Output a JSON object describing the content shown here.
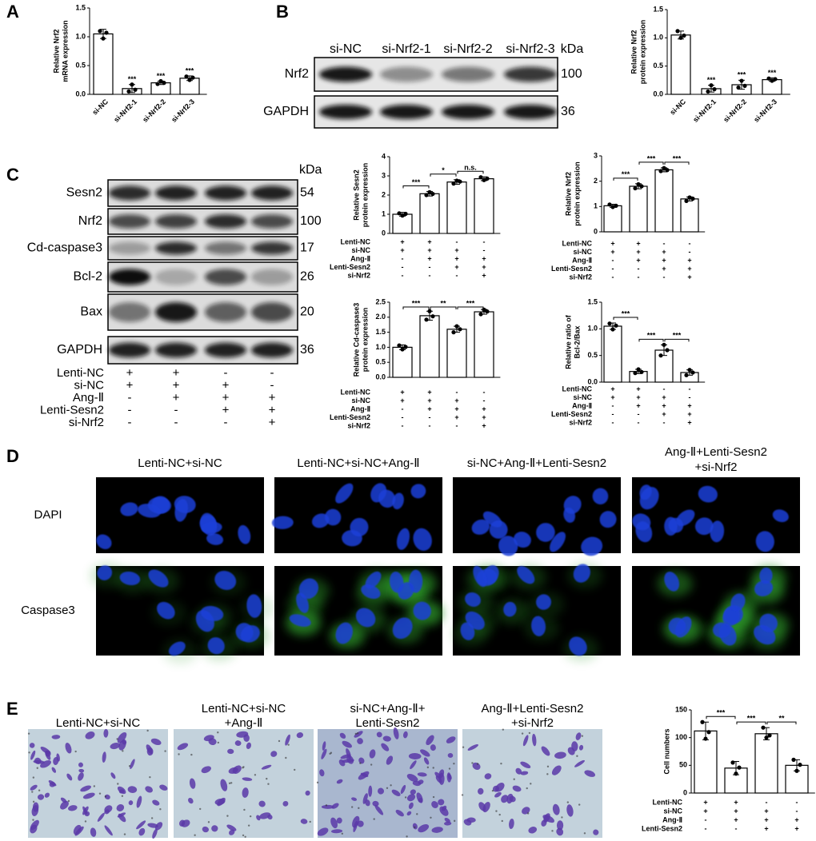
{
  "panel_labels": [
    "A",
    "B",
    "C",
    "D",
    "E"
  ],
  "chart_data": [
    {
      "type": "bar",
      "ylabel": [
        "Relative Nrf2",
        "mRNA expression"
      ],
      "categories": [
        "si-NC",
        "si-Nrf2-1",
        "si-Nrf2-2",
        "si-Nrf2-3"
      ],
      "values": [
        1.05,
        0.1,
        0.2,
        0.28
      ],
      "errors": [
        0.08,
        0.07,
        0.03,
        0.04
      ],
      "points": [
        [
          1.1,
          0.97,
          1.07
        ],
        [
          0.05,
          0.17,
          0.08
        ],
        [
          0.18,
          0.23,
          0.2
        ],
        [
          0.31,
          0.25,
          0.29
        ]
      ],
      "stars": [
        null,
        "***",
        "***",
        "***"
      ],
      "ylim": [
        0,
        1.5
      ],
      "yticks": [
        {
          "value": 0,
          "label": "0.0"
        },
        0.5,
        {
          "value": 1,
          "label": "1.0"
        },
        1.5
      ]
    },
    {
      "type": "bar",
      "ylabel": [
        "Relative Nrf2",
        "protein expression"
      ],
      "categories": [
        "si-NC",
        "si-Nrf2-1",
        "si-Nrf2-2",
        "si-Nrf2-3"
      ],
      "values": [
        1.05,
        0.1,
        0.17,
        0.26
      ],
      "errors": [
        0.07,
        0.06,
        0.08,
        0.03
      ],
      "points": [
        [
          1.12,
          1.0,
          1.04
        ],
        [
          0.05,
          0.16,
          0.09
        ],
        [
          0.12,
          0.24,
          0.15
        ],
        [
          0.28,
          0.24,
          0.27
        ]
      ],
      "stars": [
        null,
        "***",
        "***",
        "***"
      ],
      "ylim": [
        0,
        1.5
      ],
      "yticks": [
        {
          "value": 0,
          "label": "0.0"
        },
        0.5,
        {
          "value": 1,
          "label": "1.0"
        },
        1.5
      ]
    },
    {
      "type": "bar",
      "ylabel": [
        "Relative Sesn2",
        "protein expression"
      ],
      "values": [
        1.0,
        2.07,
        2.68,
        2.85
      ],
      "errors": [
        0.1,
        0.12,
        0.12,
        0.1
      ],
      "points": [
        [
          1.05,
          0.93,
          1.02
        ],
        [
          2.0,
          2.15,
          2.06
        ],
        [
          2.6,
          2.75,
          2.7
        ],
        [
          2.93,
          2.78,
          2.86
        ]
      ],
      "significance": [
        "***",
        "*",
        "n.s."
      ],
      "ylim": [
        0,
        4
      ],
      "yticks": [
        0,
        1,
        2,
        3,
        4
      ],
      "conditions": [
        {
          "name": "Lenti-NC",
          "signs": [
            "+",
            "+",
            "-",
            "-"
          ]
        },
        {
          "name": "si-NC",
          "signs": [
            "+",
            "+",
            "+",
            "-"
          ]
        },
        {
          "name": "Ang-Ⅱ",
          "signs": [
            "-",
            "+",
            "+",
            "+"
          ]
        },
        {
          "name": "Lenti-Sesn2",
          "signs": [
            "-",
            "-",
            "+",
            "+"
          ]
        },
        {
          "name": "si-Nrf2",
          "signs": [
            "-",
            "-",
            "-",
            "+"
          ]
        }
      ]
    },
    {
      "type": "bar",
      "ylabel": [
        "Relative Nrf2",
        "protein expression"
      ],
      "values": [
        1.03,
        1.8,
        2.45,
        1.3
      ],
      "errors": [
        0.06,
        0.1,
        0.08,
        0.08
      ],
      "points": [
        [
          1.08,
          0.98,
          1.03
        ],
        [
          1.72,
          1.88,
          1.8
        ],
        [
          2.4,
          2.52,
          2.44
        ],
        [
          1.22,
          1.36,
          1.31
        ]
      ],
      "significance": [
        "***",
        "***",
        "***"
      ],
      "ylim": [
        0,
        3
      ],
      "yticks": [
        0,
        1,
        2,
        3
      ],
      "conditions": [
        {
          "name": "Lenti-NC",
          "signs": [
            "+",
            "+",
            "-",
            "-"
          ]
        },
        {
          "name": "si-NC",
          "signs": [
            "+",
            "+",
            "+",
            "-"
          ]
        },
        {
          "name": "Ang-Ⅱ",
          "signs": [
            "-",
            "+",
            "+",
            "+"
          ]
        },
        {
          "name": "Lenti-Sesn2",
          "signs": [
            "-",
            "-",
            "+",
            "+"
          ]
        },
        {
          "name": "si-Nrf2",
          "signs": [
            "-",
            "-",
            "-",
            "+"
          ]
        }
      ]
    },
    {
      "type": "bar",
      "ylabel": [
        "Relative Cd-caspase3",
        "protein expression"
      ],
      "values": [
        1.0,
        2.05,
        1.6,
        2.18
      ],
      "errors": [
        0.08,
        0.15,
        0.1,
        0.08
      ],
      "points": [
        [
          1.06,
          0.93,
          1.01
        ],
        [
          1.92,
          2.2,
          2.03
        ],
        [
          1.5,
          1.7,
          1.6
        ],
        [
          2.1,
          2.25,
          2.19
        ]
      ],
      "significance": [
        "***",
        "**",
        "***"
      ],
      "ylim": [
        0,
        2.5
      ],
      "yticks": [
        {
          "value": 0,
          "label": "0.0"
        },
        0.5,
        {
          "value": 1,
          "label": "1.0"
        },
        1.5,
        {
          "value": 2,
          "label": "2.0"
        },
        2.5
      ],
      "conditions": [
        {
          "name": "Lenti-NC",
          "signs": [
            "+",
            "+",
            "-",
            "-"
          ]
        },
        {
          "name": "si-NC",
          "signs": [
            "+",
            "+",
            "+",
            "-"
          ]
        },
        {
          "name": "Ang-Ⅱ",
          "signs": [
            "-",
            "+",
            "+",
            "+"
          ]
        },
        {
          "name": "Lenti-Sesn2",
          "signs": [
            "-",
            "-",
            "+",
            "+"
          ]
        },
        {
          "name": "si-Nrf2",
          "signs": [
            "-",
            "-",
            "-",
            "+"
          ]
        }
      ]
    },
    {
      "type": "bar",
      "ylabel": [
        "Relative ratio of",
        "Bcl-2/Bax"
      ],
      "values": [
        1.05,
        0.2,
        0.6,
        0.18
      ],
      "errors": [
        0.06,
        0.04,
        0.1,
        0.05
      ],
      "points": [
        [
          1.1,
          0.99,
          1.06
        ],
        [
          0.17,
          0.24,
          0.19
        ],
        [
          0.5,
          0.7,
          0.6
        ],
        [
          0.13,
          0.23,
          0.18
        ]
      ],
      "significance": [
        "***",
        "***",
        "***"
      ],
      "ylim": [
        0,
        1.5
      ],
      "yticks": [
        {
          "value": 0,
          "label": "0.0"
        },
        0.5,
        {
          "value": 1,
          "label": "1.0"
        },
        1.5
      ],
      "conditions": [
        {
          "name": "Lenti-NC",
          "signs": [
            "+",
            "+",
            "-",
            "-"
          ]
        },
        {
          "name": "si-NC",
          "signs": [
            "+",
            "+",
            "+",
            "-"
          ]
        },
        {
          "name": "Ang-Ⅱ",
          "signs": [
            "-",
            "+",
            "+",
            "+"
          ]
        },
        {
          "name": "Lenti-Sesn2",
          "signs": [
            "-",
            "-",
            "+",
            "+"
          ]
        },
        {
          "name": "si-Nrf2",
          "signs": [
            "-",
            "-",
            "-",
            "+"
          ]
        }
      ]
    },
    {
      "type": "bar",
      "ylabel": [
        "Cell numbers"
      ],
      "values": [
        112,
        45,
        107,
        50
      ],
      "errors": [
        16,
        12,
        11,
        10
      ],
      "points": [
        [
          128,
          98,
          110
        ],
        [
          55,
          35,
          46
        ],
        [
          118,
          100,
          104
        ],
        [
          60,
          40,
          51
        ]
      ],
      "significance": [
        "***",
        "***",
        "**"
      ],
      "ylim": [
        0,
        150
      ],
      "yticks": [
        0,
        50,
        100,
        150
      ],
      "conditions": [
        {
          "name": "Lenti-NC",
          "signs": [
            "+",
            "+",
            "-",
            "-"
          ]
        },
        {
          "name": "si-NC",
          "signs": [
            "+",
            "+",
            "+",
            "-"
          ]
        },
        {
          "name": "Ang-Ⅱ",
          "signs": [
            "-",
            "+",
            "+",
            "+"
          ]
        },
        {
          "name": "Lenti-Sesn2",
          "signs": [
            "-",
            "-",
            "+",
            "+"
          ]
        }
      ]
    }
  ],
  "blots": {
    "B": {
      "lanes": [
        "si-NC",
        "si-Nrf2-1",
        "si-Nrf2-2",
        "si-Nrf2-3"
      ],
      "unit": "kDa",
      "rows": [
        {
          "name": "Nrf2",
          "kda": 100
        },
        {
          "name": "GAPDH",
          "kda": 36
        }
      ]
    },
    "C": {
      "unit": "kDa",
      "rows": [
        {
          "name": "Sesn2",
          "kda": 54
        },
        {
          "name": "Nrf2",
          "kda": 100
        },
        {
          "name": "Cd-caspase3",
          "kda": 17
        },
        {
          "name": "Bcl-2",
          "kda": 26
        },
        {
          "name": "Bax",
          "kda": 20
        },
        {
          "name": "GAPDH",
          "kda": 36
        }
      ],
      "conditions": [
        {
          "name": "Lenti-NC",
          "signs": [
            "+",
            "+",
            "-",
            "-"
          ]
        },
        {
          "name": "si-NC",
          "signs": [
            "+",
            "+",
            "+",
            "-"
          ]
        },
        {
          "name": "Ang-Ⅱ",
          "signs": [
            "-",
            "+",
            "+",
            "+"
          ]
        },
        {
          "name": "Lenti-Sesn2",
          "signs": [
            "-",
            "-",
            "+",
            "+"
          ]
        },
        {
          "name": "si-Nrf2",
          "signs": [
            "-",
            "-",
            "-",
            "+"
          ]
        }
      ]
    }
  },
  "micrographs": {
    "D": {
      "columns": [
        [
          "Lenti-NC+si-NC"
        ],
        [
          "Lenti-NC+si-NC+Ang-Ⅱ"
        ],
        [
          "si-NC+Ang-Ⅱ+Lenti-Sesn2"
        ],
        [
          "Ang-Ⅱ+Lenti-Sesn2",
          "+si-Nrf2"
        ]
      ],
      "rows": [
        "DAPI",
        "Caspase3"
      ]
    },
    "E": {
      "columns": [
        [
          "Lenti-NC+si-NC"
        ],
        [
          "Lenti-NC+si-NC",
          "+Ang-Ⅱ"
        ],
        [
          "si-NC+Ang-Ⅱ+",
          "Lenti-Sesn2"
        ],
        [
          "Ang-Ⅱ+Lenti-Sesn2",
          "+si-Nrf2"
        ]
      ]
    }
  }
}
